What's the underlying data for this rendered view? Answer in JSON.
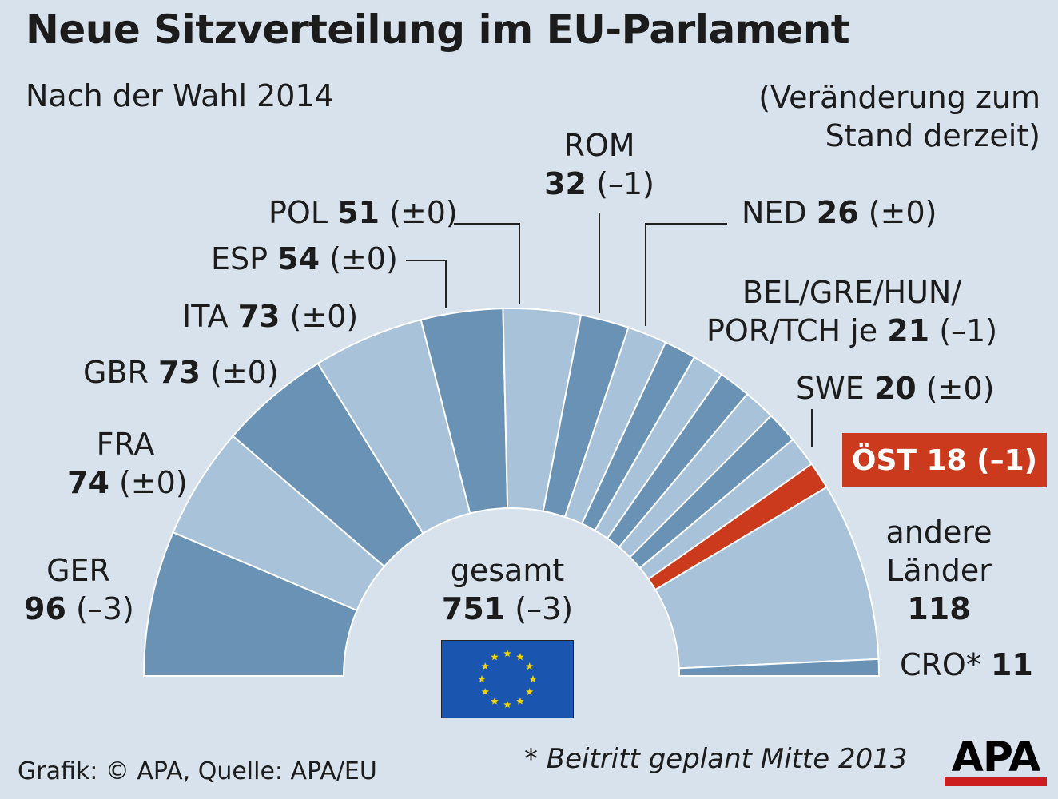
{
  "header": {
    "title": "Neue Sitzverteilung im EU-Parlament",
    "subtitle": "Nach der Wahl 2014",
    "change_note": "(Veränderung zum Stand derzeit)"
  },
  "chart_data": {
    "type": "semicircle-parliament",
    "unit": "Sitze",
    "colors": {
      "dark": "#6a92b5",
      "light": "#a8c2da",
      "highlight": "#cc3a1e"
    },
    "segments": [
      {
        "country": "GER",
        "seats": 96,
        "change": "(–3)"
      },
      {
        "country": "FRA",
        "seats": 74,
        "change": "(±0)"
      },
      {
        "country": "GBR",
        "seats": 73,
        "change": "(±0)"
      },
      {
        "country": "ITA",
        "seats": 73,
        "change": "(±0)"
      },
      {
        "country": "ESP",
        "seats": 54,
        "change": "(±0)"
      },
      {
        "country": "POL",
        "seats": 51,
        "change": "(±0)"
      },
      {
        "country": "ROM",
        "seats": 32,
        "change": "(–1)"
      },
      {
        "country": "NED",
        "seats": 26,
        "change": "(±0)"
      },
      {
        "country": "BEL",
        "seats": 21,
        "change": "(–1)"
      },
      {
        "country": "GRE",
        "seats": 21,
        "change": "(–1)"
      },
      {
        "country": "HUN",
        "seats": 21,
        "change": "(–1)"
      },
      {
        "country": "POR",
        "seats": 21,
        "change": "(–1)"
      },
      {
        "country": "TCH",
        "seats": 21,
        "change": "(–1)"
      },
      {
        "country": "SWE",
        "seats": 20,
        "change": "(±0)"
      },
      {
        "country": "ÖST",
        "seats": 18,
        "change": "(–1)",
        "highlight": true
      },
      {
        "country": "andere Länder",
        "seats": 118,
        "change": ""
      },
      {
        "country": "CRO*",
        "seats": 11,
        "change": ""
      }
    ],
    "total": {
      "label": "gesamt",
      "seats": 751,
      "change": "(–3)"
    }
  },
  "labels": {
    "ger": {
      "name": "GER",
      "value": "96",
      "change": "(–3)"
    },
    "fra": {
      "name": "FRA",
      "value": "74",
      "change": "(±0)"
    },
    "gbr": {
      "name": "GBR",
      "value": "73",
      "change": "(±0)"
    },
    "ita": {
      "name": "ITA",
      "value": "73",
      "change": "(±0)"
    },
    "esp": {
      "name": "ESP",
      "value": "54",
      "change": "(±0)"
    },
    "pol": {
      "name": "POL",
      "value": "51",
      "change": "(±0)"
    },
    "rom": {
      "name": "ROM",
      "value": "32",
      "change": "(–1)"
    },
    "ned": {
      "name": "NED",
      "value": "26",
      "change": "(±0)"
    },
    "group": {
      "line1": "BEL/GRE/HUN/",
      "line2": "POR/TCH je",
      "value": "21",
      "change": "(–1)"
    },
    "swe": {
      "name": "SWE",
      "value": "20",
      "change": "(±0)"
    },
    "ost": "ÖST 18 (–1)",
    "andere": {
      "line1": "andere",
      "line2": "Länder",
      "value": "118"
    },
    "cro": {
      "name": "CRO*",
      "value": "11"
    },
    "total": {
      "label": "gesamt",
      "value": "751",
      "change": "(–3)"
    }
  },
  "footer": {
    "credit": "Grafik: © APA, Quelle: APA/EU",
    "footnote": "* Beitritt geplant Mitte 2013",
    "logo": "APA"
  }
}
